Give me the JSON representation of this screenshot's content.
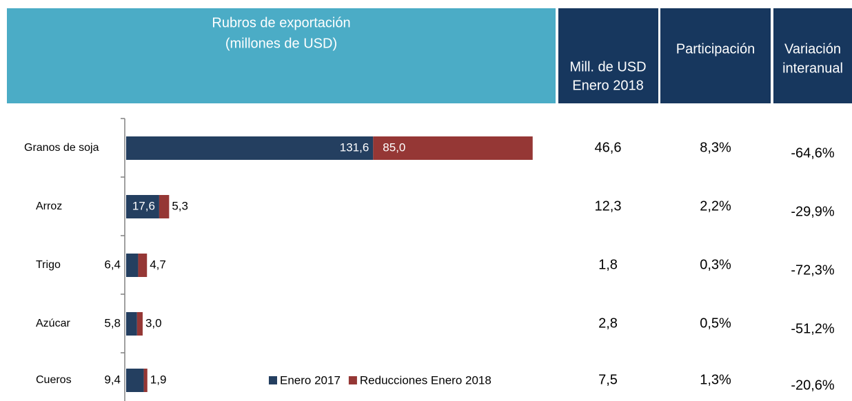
{
  "header": {
    "title": "Rubros de exportación",
    "subtitle": "(millones de USD)",
    "columns": [
      [
        "Mill. de USD",
        "Enero 2018"
      ],
      [
        "Participación"
      ],
      [
        "Variación",
        "interanual"
      ]
    ]
  },
  "chart_data": {
    "type": "bar",
    "orientation": "horizontal",
    "stacked": true,
    "categories": [
      "Granos de soja",
      "Arroz",
      "Trigo",
      "Azúcar",
      "Cueros"
    ],
    "series": [
      {
        "name": "Enero 2017",
        "color": "#243f60",
        "values": [
          131.6,
          17.6,
          6.4,
          5.8,
          9.4
        ],
        "value_labels": [
          "131,6",
          "17,6",
          "6,4",
          "5,8",
          "9,4"
        ]
      },
      {
        "name": "Reducciones Enero 2018",
        "color": "#953735",
        "values": [
          85.0,
          5.3,
          4.7,
          3.0,
          1.9
        ],
        "value_labels": [
          "85,0",
          "5,3",
          "4,7",
          "3,0",
          "1,9"
        ]
      }
    ],
    "xlim": [
      0,
      220
    ],
    "legend": "bottom"
  },
  "table": {
    "rows": [
      [
        "46,6",
        "8,3%",
        "-64,6%"
      ],
      [
        "12,3",
        "2,2%",
        "-29,9%"
      ],
      [
        "1,8",
        "0,3%",
        "-72,3%"
      ],
      [
        "2,8",
        "0,5%",
        "-51,2%"
      ],
      [
        "7,5",
        "1,3%",
        "-20,6%"
      ]
    ]
  }
}
